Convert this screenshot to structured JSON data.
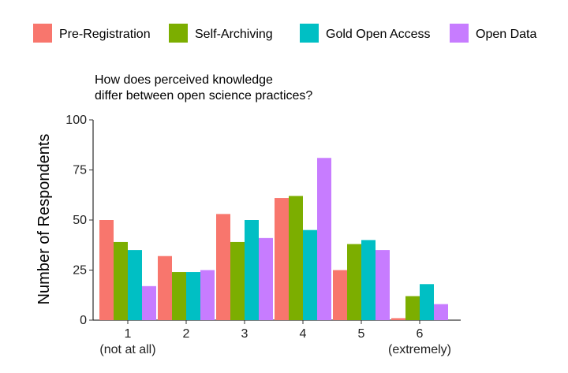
{
  "chart_data": {
    "type": "bar",
    "title": "How does perceived knowledge differ between open science practices?",
    "title_lines": [
      "How does perceived knowledge",
      "differ between open science practices?"
    ],
    "xlabel": "",
    "ylabel": "Number of Respondents",
    "categories": [
      "1",
      "2",
      "3",
      "4",
      "5",
      "6"
    ],
    "category_sublabels": [
      "(not at all)",
      "",
      "",
      "",
      "",
      "(extremely)"
    ],
    "ylim": [
      0,
      100
    ],
    "yticks": [
      0,
      25,
      50,
      75,
      100
    ],
    "grid": false,
    "legend_position": "top",
    "series": [
      {
        "name": "Pre-Registration",
        "color": "#F8766D",
        "values": [
          50,
          32,
          53,
          61,
          25,
          1
        ]
      },
      {
        "name": "Self-Archiving",
        "color": "#7CAE00",
        "values": [
          39,
          24,
          39,
          62,
          38,
          12
        ]
      },
      {
        "name": "Gold Open Access",
        "color": "#00BFC4",
        "values": [
          35,
          24,
          50,
          45,
          40,
          18
        ]
      },
      {
        "name": "Open Data",
        "color": "#C77CFF",
        "values": [
          17,
          25,
          41,
          81,
          35,
          8
        ]
      }
    ]
  }
}
